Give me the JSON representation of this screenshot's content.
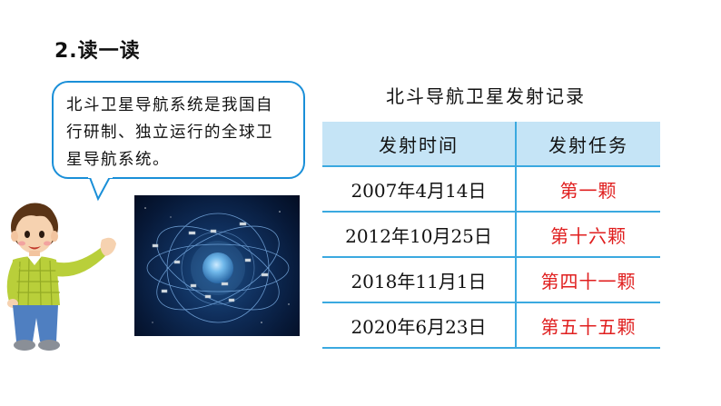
{
  "heading": "2.读一读",
  "bubble": {
    "line1": "北斗卫星导航系统是我国自",
    "line2": "行研制、独立运行的全球卫",
    "line3": "星导航系统。"
  },
  "table": {
    "title": "北斗导航卫星发射记录",
    "headers": [
      "发射时间",
      "发射任务"
    ],
    "rows": [
      {
        "date": "2007年4月14日",
        "task": "第一颗"
      },
      {
        "date": "2012年10月25日",
        "task": "第十六颗"
      },
      {
        "date": "2018年11月1日",
        "task": "第四十一颗"
      },
      {
        "date": "2020年6月23日",
        "task": "第五十五颗"
      }
    ]
  },
  "colors": {
    "bubble_border": "#1a8fd8",
    "table_header_bg": "#c5e4f6",
    "table_line": "#3ba9e0",
    "task_text": "#e01f1f"
  }
}
